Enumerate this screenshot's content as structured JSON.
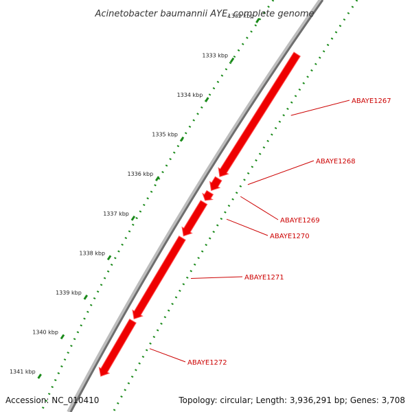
{
  "header": {
    "title": "Acinetobacter baumannii AYE, complete genome"
  },
  "footer": {
    "accession": "Accession: NC_010410",
    "summary": "Topology: circular; Length: 3,936,291 bp; Genes: 3,708"
  },
  "colors": {
    "gene_fill": "#ee0000",
    "gene_highlight": "#ff5a5a",
    "backbone_dark": "#6e6e6e",
    "backbone_light": "#bdbdbd",
    "tick_dots": "#1a8a1a",
    "label_text": "#cc0000",
    "leader_line": "#cc0000"
  },
  "scale": {
    "ticks": [
      {
        "kbp": 1332,
        "label": "1332 kbp"
      },
      {
        "kbp": 1333,
        "label": "1333 kbp"
      },
      {
        "kbp": 1334,
        "label": "1334 kbp"
      },
      {
        "kbp": 1335,
        "label": "1335 kbp"
      },
      {
        "kbp": 1336,
        "label": "1336 kbp"
      },
      {
        "kbp": 1337,
        "label": "1337 kbp"
      },
      {
        "kbp": 1338,
        "label": "1338 kbp"
      },
      {
        "kbp": 1339,
        "label": "1339 kbp"
      },
      {
        "kbp": 1340,
        "label": "1340 kbp"
      },
      {
        "kbp": 1341,
        "label": "1341 kbp"
      }
    ]
  },
  "genes": [
    {
      "name": "ABAYE1267",
      "start_kbp": 1332.85,
      "end_kbp": 1335.95
    },
    {
      "name": "ABAYE1268",
      "start_kbp": 1336.0,
      "end_kbp": 1336.3
    },
    {
      "name": "ABAYE1269",
      "start_kbp": 1336.35,
      "end_kbp": 1336.55
    },
    {
      "name": "ABAYE1270",
      "start_kbp": 1336.6,
      "end_kbp": 1337.45
    },
    {
      "name": "ABAYE1271",
      "start_kbp": 1337.5,
      "end_kbp": 1339.55
    },
    {
      "name": "ABAYE1272",
      "start_kbp": 1339.6,
      "end_kbp": 1341.0
    }
  ]
}
